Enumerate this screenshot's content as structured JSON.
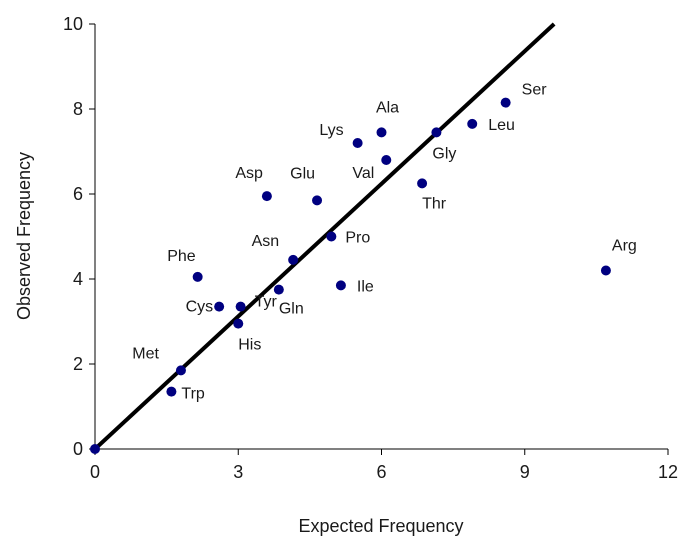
{
  "chart_data": {
    "type": "scatter",
    "title": "",
    "xlabel": "Expected Frequency",
    "ylabel": "Observed Frequency",
    "xlim": [
      0,
      12
    ],
    "ylim": [
      0,
      10
    ],
    "xticks": [
      0,
      3,
      6,
      9,
      12
    ],
    "yticks": [
      0,
      2,
      4,
      6,
      8,
      10
    ],
    "grid": false,
    "legend": "none",
    "point_color": "#000080",
    "line_color": "#000000",
    "reference_line": {
      "slope": 1.04,
      "intercept": 0
    },
    "points": [
      {
        "label": "Trp",
        "x": 1.6,
        "y": 1.35
      },
      {
        "label": "Met",
        "x": 1.8,
        "y": 1.85
      },
      {
        "label": "Phe",
        "x": 2.15,
        "y": 4.05
      },
      {
        "label": "Cys",
        "x": 2.6,
        "y": 3.35
      },
      {
        "label": "His",
        "x": 3.0,
        "y": 2.95
      },
      {
        "label": "Tyr",
        "x": 3.05,
        "y": 3.35
      },
      {
        "label": "Asp",
        "x": 3.6,
        "y": 5.95
      },
      {
        "label": "Gln",
        "x": 3.85,
        "y": 3.75
      },
      {
        "label": "Asn",
        "x": 4.15,
        "y": 4.45
      },
      {
        "label": "Glu",
        "x": 4.65,
        "y": 5.85
      },
      {
        "label": "Pro",
        "x": 4.95,
        "y": 5.0
      },
      {
        "label": "Ile",
        "x": 5.15,
        "y": 3.85
      },
      {
        "label": "Lys",
        "x": 5.5,
        "y": 7.2
      },
      {
        "label": "Ala",
        "x": 6.0,
        "y": 7.45
      },
      {
        "label": "Val",
        "x": 6.1,
        "y": 6.8
      },
      {
        "label": "Thr",
        "x": 6.85,
        "y": 6.25
      },
      {
        "label": "Gly",
        "x": 7.15,
        "y": 7.45
      },
      {
        "label": "Leu",
        "x": 7.9,
        "y": 7.65
      },
      {
        "label": "Ser",
        "x": 8.6,
        "y": 8.15
      },
      {
        "label": "Arg",
        "x": 10.7,
        "y": 4.2
      }
    ]
  }
}
